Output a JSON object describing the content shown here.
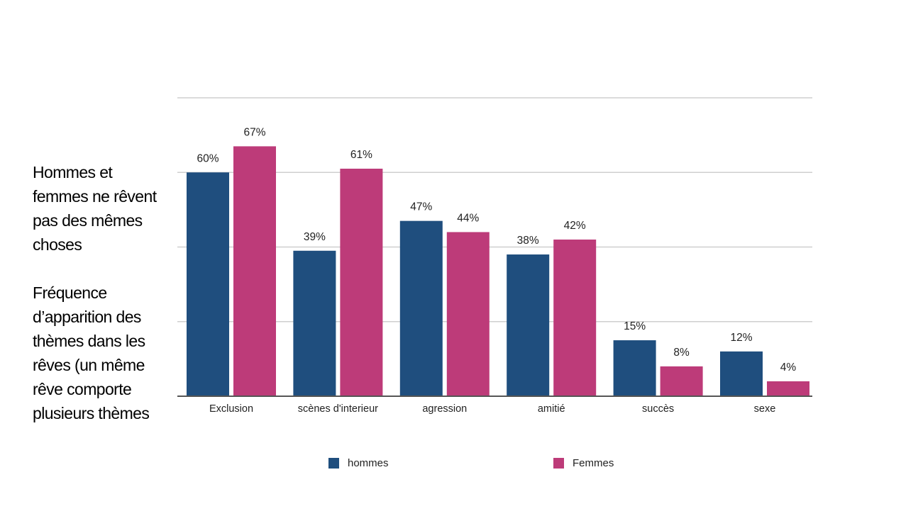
{
  "side_text": {
    "heading": "Hommes et\nfemmes ne rêvent\npas des mêmes\nchoses",
    "description": "Fréquence\nd’apparition des\nthèmes dans les\nrêves (un même\nrêve comporte\nplusieurs thèmes"
  },
  "colors": {
    "hommes": "#1f4e7e",
    "femmes": "#bd3b79",
    "grid": "#cfcfcf",
    "axis": "#555555"
  },
  "chart_data": {
    "type": "bar",
    "categories": [
      "Exclusion",
      "scènes d'interieur",
      "agression",
      "amitié",
      "succès",
      "sexe"
    ],
    "series": [
      {
        "name": "hommes",
        "values": [
          60,
          39,
          47,
          38,
          15,
          12
        ],
        "labels": [
          "60%",
          "39%",
          "47%",
          "38%",
          "15%",
          "12%"
        ]
      },
      {
        "name": "Femmes",
        "values": [
          67,
          61,
          44,
          42,
          8,
          4
        ],
        "labels": [
          "67%",
          "61%",
          "44%",
          "42%",
          "8%",
          "4%"
        ]
      }
    ],
    "ylim": [
      0,
      80
    ],
    "grid": true,
    "legend": "bottom",
    "title": "",
    "xlabel": "",
    "ylabel": ""
  }
}
